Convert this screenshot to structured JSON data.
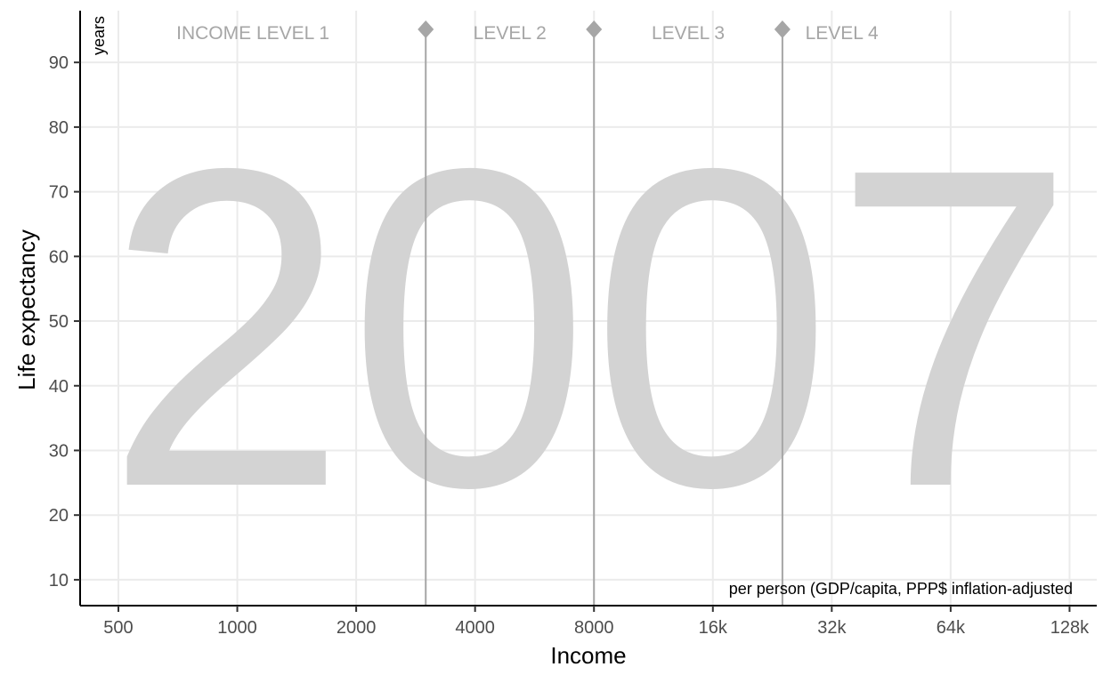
{
  "chart_data": {
    "type": "scatter",
    "title": "",
    "background_year": "2007",
    "xlabel": "Income",
    "ylabel": "Life expectancy",
    "x_unit_note": "per person (GDP/capita, PPP$ inflation-adjusted",
    "y_unit_note": "years",
    "x_scale": "log2",
    "xlim": [
      400,
      150000
    ],
    "ylim": [
      6,
      98
    ],
    "x_ticks": [
      {
        "value": 500,
        "label": "500"
      },
      {
        "value": 1000,
        "label": "1000"
      },
      {
        "value": 2000,
        "label": "2000"
      },
      {
        "value": 4000,
        "label": "4000"
      },
      {
        "value": 8000,
        "label": "8000"
      },
      {
        "value": 16000,
        "label": "16k"
      },
      {
        "value": 32000,
        "label": "32k"
      },
      {
        "value": 64000,
        "label": "64k"
      },
      {
        "value": 128000,
        "label": "128k"
      }
    ],
    "y_ticks": [
      {
        "value": 10,
        "label": "10"
      },
      {
        "value": 20,
        "label": "20"
      },
      {
        "value": 30,
        "label": "30"
      },
      {
        "value": 40,
        "label": "40"
      },
      {
        "value": 50,
        "label": "50"
      },
      {
        "value": 60,
        "label": "60"
      },
      {
        "value": 70,
        "label": "70"
      },
      {
        "value": 80,
        "label": "80"
      },
      {
        "value": 90,
        "label": "90"
      }
    ],
    "income_levels": [
      {
        "label": "INCOME LEVEL 1",
        "from": 400,
        "to": 3000
      },
      {
        "label": "LEVEL 2",
        "from": 3000,
        "to": 8000
      },
      {
        "label": "LEVEL 3",
        "from": 8000,
        "to": 24000
      },
      {
        "label": "LEVEL 4",
        "from": 24000,
        "to": 48000
      }
    ],
    "level_boundaries": [
      3000,
      8000,
      24000
    ],
    "grid": true,
    "points": [],
    "colors": {
      "grid": "#ebebeb",
      "axis": "#000000",
      "boundary": "#a6a6a6",
      "year": "#d3d3d3",
      "level_label": "#a6a6a6"
    }
  }
}
